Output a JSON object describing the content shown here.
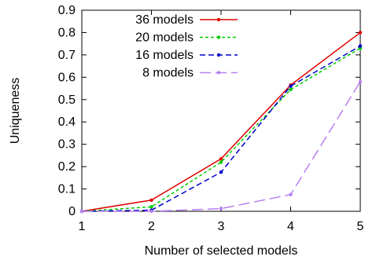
{
  "chart_data": {
    "type": "line",
    "xlabel": "Number of selected models",
    "ylabel": "Uniqueness",
    "x": [
      1,
      2,
      3,
      4,
      5
    ],
    "xlim": [
      1,
      5
    ],
    "ylim": [
      0,
      0.9
    ],
    "xticks": [
      "1",
      "2",
      "3",
      "4",
      "5"
    ],
    "yticks": [
      "0",
      "0.1",
      "0.2",
      "0.3",
      "0.4",
      "0.5",
      "0.6",
      "0.7",
      "0.8",
      "0.9"
    ],
    "grid": false,
    "legend_position": "top-left",
    "series": [
      {
        "name": "36 models",
        "values": [
          0.0,
          0.05,
          0.235,
          0.565,
          0.8
        ],
        "color": "#e00000",
        "dash": "solid"
      },
      {
        "name": "20 models",
        "values": [
          0.0,
          0.02,
          0.22,
          0.545,
          0.73
        ],
        "color": "#00cc00",
        "dash": "short"
      },
      {
        "name": "16 models",
        "values": [
          0.0,
          0.005,
          0.175,
          0.56,
          0.74
        ],
        "color": "#0000cc",
        "dash": "medium"
      },
      {
        "name": "8 models",
        "values": [
          0.0,
          0.0,
          0.012,
          0.075,
          0.58
        ],
        "color": "#b780f0",
        "dash": "long"
      }
    ]
  }
}
